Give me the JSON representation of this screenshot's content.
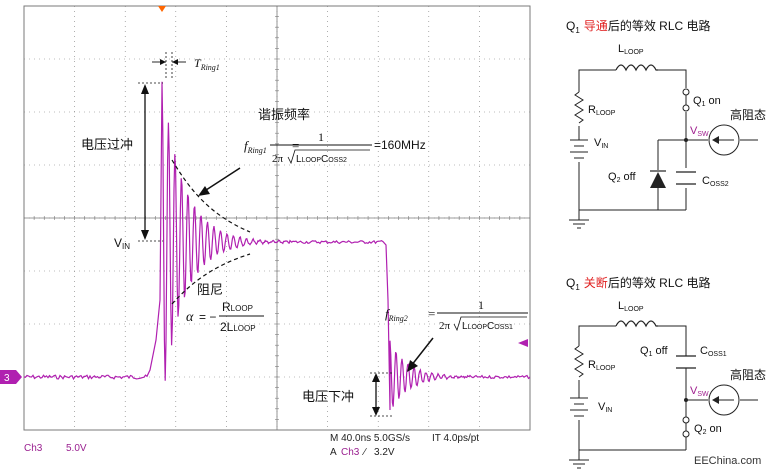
{
  "scope": {
    "status_left": "Ch3",
    "status_volts": "5.0V",
    "status_mid": "M 40.0ns 5.0GS/s",
    "status_right": "IT 4.0ps/pt",
    "status_trig_prefix": "A",
    "status_trig_ch": "Ch3",
    "status_trig_level": "3.2V",
    "ch_marker": "3",
    "colors": {
      "grid": "#7a7a7a",
      "trace": "#b020b0",
      "marker": "#ff6600"
    }
  },
  "annotations": {
    "t_ring1": "T",
    "t_ring1_sub": "Ring1",
    "resonance_label": "谐振频率",
    "f_ring1": "f",
    "f_ring1_sub": "Ring1",
    "f_ring1_eq": "=",
    "f_ring1_num": "1",
    "f_ring1_den_pre": "2π",
    "f_ring1_den": "L",
    "f_ring1_den_sub1": "LOOP",
    "f_ring1_den_c": "C",
    "f_ring1_den_sub2": "OSS2",
    "f_ring1_value": "=160MHz",
    "overshoot_label": "电压过冲",
    "vin": "V",
    "vin_sub": "IN",
    "damping_label": "阻尼",
    "alpha": "α",
    "alpha_eq": "= −",
    "alpha_num": "R",
    "alpha_num_sub": "LOOP",
    "alpha_den": "2L",
    "alpha_den_sub": "LOOP",
    "f_ring2": "f",
    "f_ring2_sub": "Ring2",
    "f_ring2_eq": "=",
    "f_ring2_num": "1",
    "f_ring2_den_pre": "2π",
    "f_ring2_den": "L",
    "f_ring2_den_sub1": "LOOP",
    "f_ring2_den_c": "C",
    "f_ring2_den_sub2": "OSS1",
    "undershoot_label": "电压下冲"
  },
  "circuit1": {
    "title_q": "Q",
    "title_sub": "1",
    "title_hl": "导通",
    "title_rest": "后的等效 RLC 电路",
    "l_loop": "L",
    "l_loop_sub": "LOOP",
    "r_loop": "R",
    "r_loop_sub": "LOOP",
    "vin": "V",
    "vin_sub": "IN",
    "q1": "Q",
    "q1_sub": "1",
    "q1_state": " on",
    "vsw": "V",
    "vsw_sub": "SW",
    "hiz": "高阻态",
    "q2": "Q",
    "q2_sub": "2",
    "q2_state": " off",
    "coss": "C",
    "coss_sub": "OSS2"
  },
  "circuit2": {
    "title_q": "Q",
    "title_sub": "1",
    "title_hl": "关断",
    "title_rest": "后的等效 RLC 电路",
    "l_loop": "L",
    "l_loop_sub": "LOOP",
    "r_loop": "R",
    "r_loop_sub": "LOOP",
    "vin": "V",
    "vin_sub": "IN",
    "q1": "Q",
    "q1_sub": "1",
    "q1_state": " off",
    "coss": "C",
    "coss_sub": "OSS1",
    "vsw": "V",
    "vsw_sub": "SW",
    "hiz": "高阻态",
    "q2": "Q",
    "q2_sub": "2",
    "q2_state": " on"
  },
  "watermark": "EEChina.com",
  "colors": {
    "highlight": "#e02020",
    "vsw": "#a0208f",
    "wire": "#222222"
  }
}
